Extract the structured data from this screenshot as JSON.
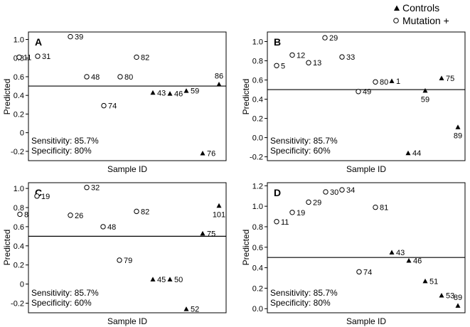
{
  "legend": [
    {
      "marker": "triangle",
      "label": "Controls"
    },
    {
      "marker": "circle",
      "label": "Mutation +"
    }
  ],
  "chart_data": [
    {
      "type": "scatter",
      "panel": "A",
      "xlabel": "Sample ID",
      "ylabel": "Predicted",
      "threshold": 0.5,
      "ylim": [
        -0.3,
        1.08
      ],
      "yticks": [
        "1.0",
        "0.8",
        "0.6",
        "0.4",
        "0.2",
        "0",
        "-0.2"
      ],
      "ytick_values": [
        1.0,
        0.8,
        0.6,
        0.4,
        0.2,
        0.0,
        -0.2
      ],
      "annotation": [
        "Sensitivity: 85.7%",
        "Specificity: 80%"
      ],
      "points": [
        {
          "id": "11",
          "group": "Mutation +",
          "y": 0.81
        },
        {
          "id": "31",
          "group": "Mutation +",
          "y": 0.82
        },
        {
          "id": "39",
          "group": "Mutation +",
          "y": 1.03
        },
        {
          "id": "48",
          "group": "Mutation +",
          "y": 0.6
        },
        {
          "id": "74",
          "group": "Mutation +",
          "y": 0.29
        },
        {
          "id": "80",
          "group": "Mutation +",
          "y": 0.6
        },
        {
          "id": "82",
          "group": "Mutation +",
          "y": 0.81
        },
        {
          "id": "43",
          "group": "Controls",
          "y": 0.43
        },
        {
          "id": "46",
          "group": "Controls",
          "y": 0.42
        },
        {
          "id": "59",
          "group": "Controls",
          "y": 0.45
        },
        {
          "id": "76",
          "group": "Controls",
          "y": -0.22
        },
        {
          "id": "86",
          "group": "Controls",
          "y": 0.52
        }
      ]
    },
    {
      "type": "scatter",
      "panel": "B",
      "xlabel": "Sample ID",
      "ylabel": "Predicted",
      "threshold": 0.5,
      "ylim": [
        -0.24,
        1.1
      ],
      "yticks": [
        "1.0",
        "0.8",
        "0.6",
        "0.4",
        "0.2",
        "0.0",
        "-0.2"
      ],
      "ytick_values": [
        1.0,
        0.8,
        0.6,
        0.4,
        0.2,
        0.0,
        -0.2
      ],
      "annotation": [
        "Sensitivity: 85.7%",
        "Specificity: 60%"
      ],
      "points": [
        {
          "id": "5",
          "group": "Mutation +",
          "y": 0.75
        },
        {
          "id": "12",
          "group": "Mutation +",
          "y": 0.86
        },
        {
          "id": "13",
          "group": "Mutation +",
          "y": 0.78
        },
        {
          "id": "29",
          "group": "Mutation +",
          "y": 1.04
        },
        {
          "id": "33",
          "group": "Mutation +",
          "y": 0.84
        },
        {
          "id": "49",
          "group": "Mutation +",
          "y": 0.48
        },
        {
          "id": "80",
          "group": "Mutation +",
          "y": 0.58
        },
        {
          "id": "1",
          "group": "Controls",
          "y": 0.59
        },
        {
          "id": "44",
          "group": "Controls",
          "y": -0.16
        },
        {
          "id": "59",
          "group": "Controls",
          "y": 0.49
        },
        {
          "id": "75",
          "group": "Controls",
          "y": 0.62
        },
        {
          "id": "89",
          "group": "Controls",
          "y": 0.11
        }
      ]
    },
    {
      "type": "scatter",
      "panel": "C",
      "xlabel": "Sample ID",
      "ylabel": "Predicted",
      "threshold": 0.5,
      "ylim": [
        -0.3,
        1.06
      ],
      "yticks": [
        "1.0",
        "0.8",
        "0.6",
        "0.4",
        "0.2",
        "0",
        "-0.2"
      ],
      "ytick_values": [
        1.0,
        0.8,
        0.6,
        0.4,
        0.2,
        0.0,
        -0.2
      ],
      "annotation": [
        "Sensitivity: 85.7%",
        "Specificity: 60%"
      ],
      "points": [
        {
          "id": "8",
          "group": "Mutation +",
          "y": 0.73
        },
        {
          "id": "19",
          "group": "Mutation +",
          "y": 0.92
        },
        {
          "id": "26",
          "group": "Mutation +",
          "y": 0.72
        },
        {
          "id": "32",
          "group": "Mutation +",
          "y": 1.01
        },
        {
          "id": "48",
          "group": "Mutation +",
          "y": 0.6
        },
        {
          "id": "79",
          "group": "Mutation +",
          "y": 0.25
        },
        {
          "id": "82",
          "group": "Mutation +",
          "y": 0.76
        },
        {
          "id": "45",
          "group": "Controls",
          "y": 0.05
        },
        {
          "id": "50",
          "group": "Controls",
          "y": 0.05
        },
        {
          "id": "52",
          "group": "Controls",
          "y": -0.26
        },
        {
          "id": "75",
          "group": "Controls",
          "y": 0.53
        },
        {
          "id": "101",
          "group": "Controls",
          "y": 0.82
        }
      ]
    },
    {
      "type": "scatter",
      "panel": "D",
      "xlabel": "Sample ID",
      "ylabel": "Predicted",
      "threshold": 0.5,
      "ylim": [
        -0.04,
        1.23
      ],
      "yticks": [
        "1.2",
        "1.0",
        "0.8",
        "0.6",
        "0.4",
        "0.2",
        "0.0"
      ],
      "ytick_values": [
        1.2,
        1.0,
        0.8,
        0.6,
        0.4,
        0.2,
        0.0
      ],
      "annotation": [
        "Sensitivity: 85.7%",
        "Specificity: 80%"
      ],
      "points": [
        {
          "id": "11",
          "group": "Mutation +",
          "y": 0.85
        },
        {
          "id": "19",
          "group": "Mutation +",
          "y": 0.94
        },
        {
          "id": "29",
          "group": "Mutation +",
          "y": 1.04
        },
        {
          "id": "30",
          "group": "Mutation +",
          "y": 1.14
        },
        {
          "id": "34",
          "group": "Mutation +",
          "y": 1.16
        },
        {
          "id": "74",
          "group": "Mutation +",
          "y": 0.36
        },
        {
          "id": "81",
          "group": "Mutation +",
          "y": 0.99
        },
        {
          "id": "43",
          "group": "Controls",
          "y": 0.55
        },
        {
          "id": "46",
          "group": "Controls",
          "y": 0.47
        },
        {
          "id": "51",
          "group": "Controls",
          "y": 0.27
        },
        {
          "id": "53",
          "group": "Controls",
          "y": 0.13
        },
        {
          "id": "89",
          "group": "Controls",
          "y": 0.03
        }
      ]
    }
  ]
}
